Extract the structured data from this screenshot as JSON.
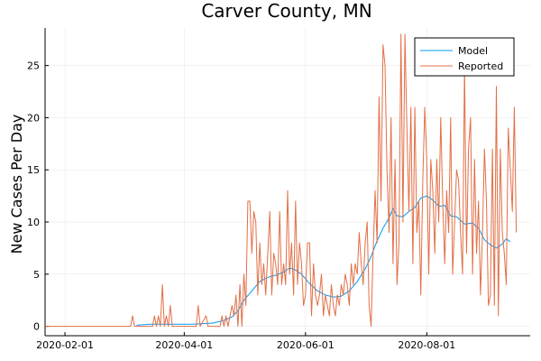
{
  "chart_data": {
    "type": "line",
    "title": "Carver County, MN",
    "xlabel": "",
    "ylabel": "New Cases Per Day",
    "x_axis": {
      "type": "date",
      "range": [
        "2020-01-22",
        "2020-09-22"
      ],
      "ticks": [
        "2020-02-01",
        "2020-04-01",
        "2020-06-01",
        "2020-08-01"
      ]
    },
    "y_axis": {
      "range": [
        -0.9,
        28.6
      ],
      "ticks": [
        0,
        5,
        10,
        15,
        20,
        25
      ]
    },
    "grid": true,
    "legend_position": "top-right",
    "series": [
      {
        "name": "Model",
        "color": "#009AFA",
        "points": [
          [
            "2020-03-08",
            0.1
          ],
          [
            "2020-03-15",
            0.2
          ],
          [
            "2020-03-25",
            0.2
          ],
          [
            "2020-04-05",
            0.2
          ],
          [
            "2020-04-15",
            0.3
          ],
          [
            "2020-04-20",
            0.5
          ],
          [
            "2020-04-25",
            0.9
          ],
          [
            "2020-04-28",
            1.5
          ],
          [
            "2020-05-01",
            2.5
          ],
          [
            "2020-05-05",
            3.4
          ],
          [
            "2020-05-09",
            4.3
          ],
          [
            "2020-05-13",
            4.7
          ],
          [
            "2020-05-17",
            4.9
          ],
          [
            "2020-05-21",
            5.2
          ],
          [
            "2020-05-24",
            5.6
          ],
          [
            "2020-05-27",
            5.4
          ],
          [
            "2020-05-30",
            5.0
          ],
          [
            "2020-06-03",
            4.1
          ],
          [
            "2020-06-07",
            3.4
          ],
          [
            "2020-06-11",
            3.0
          ],
          [
            "2020-06-15",
            2.8
          ],
          [
            "2020-06-19",
            2.9
          ],
          [
            "2020-06-23",
            3.4
          ],
          [
            "2020-06-27",
            4.3
          ],
          [
            "2020-07-01",
            5.5
          ],
          [
            "2020-07-04",
            6.7
          ],
          [
            "2020-07-07",
            8.2
          ],
          [
            "2020-07-10",
            9.4
          ],
          [
            "2020-07-13",
            10.4
          ],
          [
            "2020-07-15",
            11.3
          ],
          [
            "2020-07-17",
            10.6
          ],
          [
            "2020-07-20",
            10.5
          ],
          [
            "2020-07-23",
            11.0
          ],
          [
            "2020-07-26",
            11.4
          ],
          [
            "2020-07-29",
            12.3
          ],
          [
            "2020-08-01",
            12.5
          ],
          [
            "2020-08-04",
            12.1
          ],
          [
            "2020-08-07",
            11.5
          ],
          [
            "2020-08-10",
            11.6
          ],
          [
            "2020-08-13",
            10.6
          ],
          [
            "2020-08-16",
            10.5
          ],
          [
            "2020-08-20",
            9.8
          ],
          [
            "2020-08-24",
            9.9
          ],
          [
            "2020-08-27",
            9.4
          ],
          [
            "2020-08-30",
            8.3
          ],
          [
            "2020-09-02",
            7.8
          ],
          [
            "2020-09-05",
            7.5
          ],
          [
            "2020-09-08",
            7.9
          ],
          [
            "2020-09-10",
            8.4
          ],
          [
            "2020-09-12",
            8.1
          ]
        ]
      },
      {
        "name": "Reported",
        "color": "#E26F46",
        "points": [
          [
            "2020-01-22",
            0
          ],
          [
            "2020-02-15",
            0
          ],
          [
            "2020-03-05",
            0
          ],
          [
            "2020-03-06",
            1
          ],
          [
            "2020-03-07",
            0
          ],
          [
            "2020-03-16",
            0
          ],
          [
            "2020-03-17",
            1
          ],
          [
            "2020-03-18",
            0
          ],
          [
            "2020-03-19",
            1
          ],
          [
            "2020-03-20",
            0
          ],
          [
            "2020-03-21",
            4
          ],
          [
            "2020-03-22",
            0
          ],
          [
            "2020-03-23",
            1
          ],
          [
            "2020-03-24",
            0
          ],
          [
            "2020-03-25",
            2
          ],
          [
            "2020-03-26",
            0
          ],
          [
            "2020-04-07",
            0
          ],
          [
            "2020-04-08",
            2
          ],
          [
            "2020-04-09",
            0
          ],
          [
            "2020-04-12",
            1
          ],
          [
            "2020-04-13",
            0
          ],
          [
            "2020-04-19",
            0
          ],
          [
            "2020-04-20",
            1
          ],
          [
            "2020-04-21",
            0
          ],
          [
            "2020-04-22",
            1
          ],
          [
            "2020-04-23",
            0
          ],
          [
            "2020-04-25",
            2
          ],
          [
            "2020-04-26",
            1
          ],
          [
            "2020-04-27",
            3
          ],
          [
            "2020-04-28",
            0
          ],
          [
            "2020-04-29",
            4
          ],
          [
            "2020-04-30",
            0
          ],
          [
            "2020-05-01",
            5
          ],
          [
            "2020-05-02",
            2
          ],
          [
            "2020-05-03",
            12
          ],
          [
            "2020-05-04",
            12
          ],
          [
            "2020-05-05",
            7
          ],
          [
            "2020-05-06",
            11
          ],
          [
            "2020-05-07",
            10
          ],
          [
            "2020-05-08",
            3
          ],
          [
            "2020-05-09",
            8
          ],
          [
            "2020-05-10",
            4
          ],
          [
            "2020-05-11",
            6
          ],
          [
            "2020-05-12",
            3
          ],
          [
            "2020-05-13",
            7
          ],
          [
            "2020-05-14",
            11
          ],
          [
            "2020-05-15",
            3
          ],
          [
            "2020-05-16",
            7
          ],
          [
            "2020-05-17",
            6
          ],
          [
            "2020-05-18",
            4
          ],
          [
            "2020-05-19",
            11
          ],
          [
            "2020-05-20",
            4
          ],
          [
            "2020-05-21",
            6
          ],
          [
            "2020-05-22",
            4
          ],
          [
            "2020-05-23",
            13
          ],
          [
            "2020-05-24",
            5
          ],
          [
            "2020-05-25",
            8
          ],
          [
            "2020-05-26",
            3
          ],
          [
            "2020-05-27",
            12
          ],
          [
            "2020-05-28",
            4
          ],
          [
            "2020-05-29",
            8
          ],
          [
            "2020-05-30",
            6
          ],
          [
            "2020-05-31",
            2
          ],
          [
            "2020-06-01",
            3
          ],
          [
            "2020-06-02",
            8
          ],
          [
            "2020-06-03",
            8
          ],
          [
            "2020-06-04",
            1
          ],
          [
            "2020-06-05",
            6
          ],
          [
            "2020-06-06",
            3
          ],
          [
            "2020-06-07",
            2
          ],
          [
            "2020-06-08",
            3
          ],
          [
            "2020-06-09",
            5
          ],
          [
            "2020-06-10",
            1
          ],
          [
            "2020-06-11",
            3
          ],
          [
            "2020-06-12",
            2
          ],
          [
            "2020-06-13",
            1
          ],
          [
            "2020-06-14",
            4
          ],
          [
            "2020-06-15",
            2
          ],
          [
            "2020-06-16",
            1
          ],
          [
            "2020-06-17",
            3
          ],
          [
            "2020-06-18",
            2
          ],
          [
            "2020-06-19",
            4
          ],
          [
            "2020-06-20",
            3
          ],
          [
            "2020-06-21",
            5
          ],
          [
            "2020-06-22",
            4
          ],
          [
            "2020-06-23",
            2
          ],
          [
            "2020-06-24",
            6
          ],
          [
            "2020-06-25",
            4
          ],
          [
            "2020-06-26",
            6
          ],
          [
            "2020-06-27",
            5
          ],
          [
            "2020-06-28",
            9
          ],
          [
            "2020-06-29",
            6
          ],
          [
            "2020-06-30",
            4
          ],
          [
            "2020-07-01",
            8
          ],
          [
            "2020-07-02",
            10
          ],
          [
            "2020-07-03",
            2
          ],
          [
            "2020-07-04",
            0
          ],
          [
            "2020-07-05",
            7
          ],
          [
            "2020-07-06",
            13
          ],
          [
            "2020-07-07",
            8
          ],
          [
            "2020-07-08",
            22
          ],
          [
            "2020-07-09",
            12
          ],
          [
            "2020-07-10",
            27
          ],
          [
            "2020-07-11",
            25
          ],
          [
            "2020-07-12",
            15
          ],
          [
            "2020-07-13",
            9
          ],
          [
            "2020-07-14",
            20
          ],
          [
            "2020-07-15",
            6
          ],
          [
            "2020-07-16",
            16
          ],
          [
            "2020-07-17",
            4
          ],
          [
            "2020-07-18",
            8
          ],
          [
            "2020-07-19",
            28
          ],
          [
            "2020-07-20",
            10
          ],
          [
            "2020-07-21",
            28
          ],
          [
            "2020-07-22",
            19
          ],
          [
            "2020-07-23",
            11
          ],
          [
            "2020-07-24",
            21
          ],
          [
            "2020-07-25",
            6
          ],
          [
            "2020-07-26",
            21
          ],
          [
            "2020-07-27",
            9
          ],
          [
            "2020-07-28",
            12
          ],
          [
            "2020-07-29",
            3
          ],
          [
            "2020-07-30",
            14
          ],
          [
            "2020-07-31",
            21
          ],
          [
            "2020-08-01",
            16
          ],
          [
            "2020-08-02",
            5
          ],
          [
            "2020-08-03",
            16
          ],
          [
            "2020-08-04",
            13
          ],
          [
            "2020-08-05",
            7
          ],
          [
            "2020-08-06",
            16
          ],
          [
            "2020-08-07",
            10
          ],
          [
            "2020-08-08",
            20
          ],
          [
            "2020-08-09",
            12
          ],
          [
            "2020-08-10",
            6
          ],
          [
            "2020-08-11",
            13
          ],
          [
            "2020-08-12",
            9
          ],
          [
            "2020-08-13",
            20
          ],
          [
            "2020-08-14",
            5
          ],
          [
            "2020-08-15",
            10
          ],
          [
            "2020-08-16",
            15
          ],
          [
            "2020-08-17",
            14
          ],
          [
            "2020-08-18",
            9
          ],
          [
            "2020-08-19",
            5
          ],
          [
            "2020-08-20",
            25
          ],
          [
            "2020-08-21",
            7
          ],
          [
            "2020-08-22",
            17
          ],
          [
            "2020-08-23",
            20
          ],
          [
            "2020-08-24",
            5
          ],
          [
            "2020-08-25",
            16
          ],
          [
            "2020-08-26",
            7
          ],
          [
            "2020-08-27",
            12
          ],
          [
            "2020-08-28",
            3
          ],
          [
            "2020-08-29",
            9
          ],
          [
            "2020-08-30",
            17
          ],
          [
            "2020-08-31",
            12
          ],
          [
            "2020-09-01",
            2
          ],
          [
            "2020-09-02",
            3
          ],
          [
            "2020-09-03",
            17
          ],
          [
            "2020-09-04",
            2
          ],
          [
            "2020-09-05",
            23
          ],
          [
            "2020-09-06",
            1
          ],
          [
            "2020-09-07",
            17
          ],
          [
            "2020-09-08",
            9
          ],
          [
            "2020-09-09",
            7
          ],
          [
            "2020-09-10",
            4
          ],
          [
            "2020-09-11",
            19
          ],
          [
            "2020-09-12",
            15
          ],
          [
            "2020-09-13",
            11
          ],
          [
            "2020-09-14",
            21
          ],
          [
            "2020-09-15",
            9
          ]
        ]
      }
    ]
  }
}
